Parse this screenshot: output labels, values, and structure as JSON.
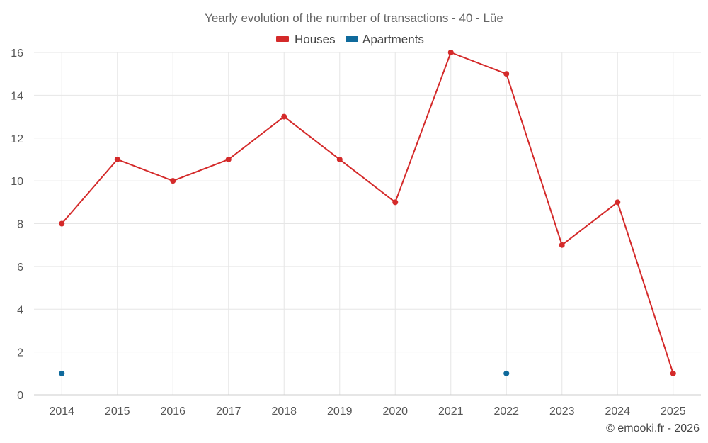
{
  "chart_data": {
    "type": "line",
    "title": "Yearly evolution of the number of transactions - 40 - Lüe",
    "xlabel": "",
    "ylabel": "",
    "categories": [
      "2014",
      "2015",
      "2016",
      "2017",
      "2018",
      "2019",
      "2020",
      "2021",
      "2022",
      "2023",
      "2024",
      "2025"
    ],
    "ylim": [
      0,
      16
    ],
    "yticks": [
      0,
      2,
      4,
      6,
      8,
      10,
      12,
      14,
      16
    ],
    "grid": true,
    "legend_position": "top-center",
    "series": [
      {
        "name": "Houses",
        "color": "#d42a2a",
        "values": [
          8,
          11,
          10,
          11,
          13,
          11,
          9,
          16,
          15,
          7,
          9,
          1
        ]
      },
      {
        "name": "Apartments",
        "color": "#0f6a9c",
        "values": [
          1,
          null,
          null,
          null,
          null,
          null,
          null,
          null,
          1,
          null,
          null,
          null
        ]
      }
    ]
  },
  "credit": "© emooki.fr - 2026"
}
